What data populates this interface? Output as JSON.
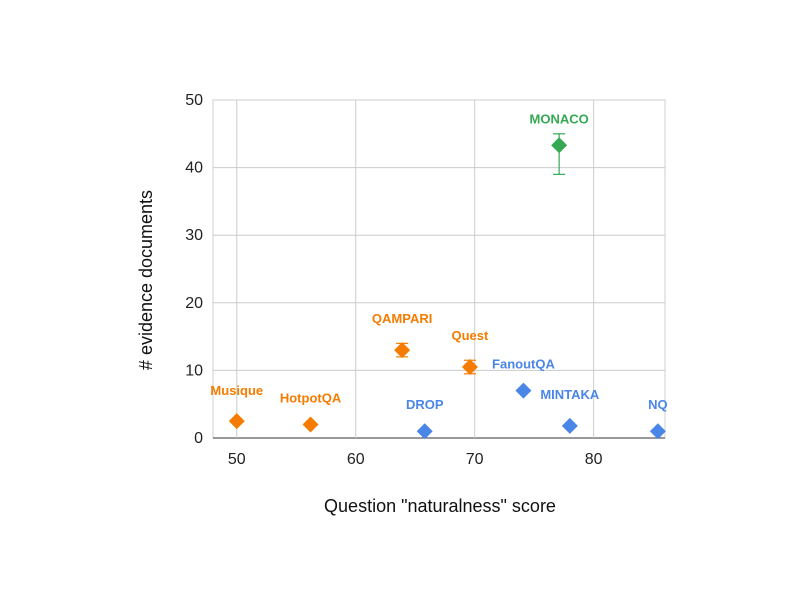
{
  "chart_data": {
    "type": "scatter",
    "xlabel": "Question \"naturalness\" score",
    "ylabel": "# evidence documents",
    "xlim": [
      48,
      86
    ],
    "ylim": [
      0,
      50
    ],
    "x_ticks": [
      "50",
      "60",
      "70",
      "80"
    ],
    "y_ticks": [
      "0",
      "10",
      "20",
      "30",
      "40",
      "50"
    ],
    "grid": true,
    "colors": {
      "orange": "#f57c00",
      "blue": "#4a86e8",
      "green": "#34a853"
    },
    "points": [
      {
        "label": "Musique",
        "x": 50,
        "y": 2.5,
        "color": "orange"
      },
      {
        "label": "HotpotQA",
        "x": 56.2,
        "y": 2,
        "color": "orange"
      },
      {
        "label": "QAMPARI",
        "x": 63.9,
        "y": 13,
        "err": [
          12,
          14
        ],
        "color": "orange"
      },
      {
        "label": "Quest",
        "x": 69.6,
        "y": 10.5,
        "err": [
          9.5,
          11.5
        ],
        "color": "orange"
      },
      {
        "label": "DROP",
        "x": 65.8,
        "y": 1,
        "color": "blue"
      },
      {
        "label": "FanoutQA",
        "x": 74.1,
        "y": 7,
        "color": "blue"
      },
      {
        "label": "MINTAKA",
        "x": 78,
        "y": 1.8,
        "color": "blue"
      },
      {
        "label": "NQ",
        "x": 85.4,
        "y": 1,
        "color": "blue"
      },
      {
        "label": "MONACO",
        "x": 77.1,
        "y": 43.3,
        "err": [
          39,
          45
        ],
        "color": "green"
      }
    ]
  }
}
